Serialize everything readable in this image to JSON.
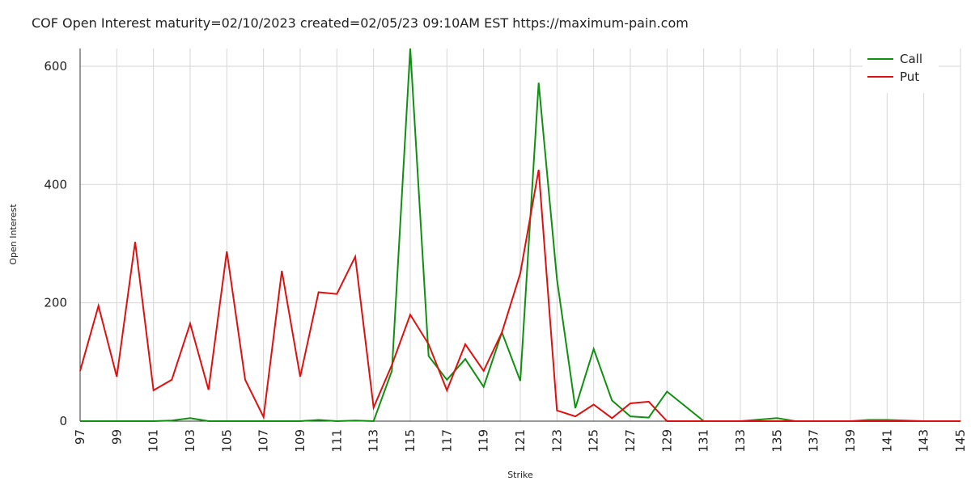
{
  "chart_data": {
    "type": "line",
    "title": "COF Open Interest maturity=02/10/2023 created=02/05/23 09:10AM EST https://maximum-pain.com",
    "xlabel": "Strike",
    "ylabel": "Open Interest",
    "x": [
      97,
      98,
      99,
      100,
      101,
      102,
      103,
      104,
      105,
      106,
      107,
      108,
      109,
      110,
      111,
      112,
      113,
      114,
      115,
      116,
      117,
      118,
      119,
      120,
      121,
      122,
      123,
      124,
      125,
      126,
      127,
      128,
      129,
      131,
      133,
      135,
      136,
      137,
      139,
      140,
      141,
      142,
      143,
      145
    ],
    "x_tick_labels": [
      "97",
      "99",
      "101",
      "103",
      "105",
      "107",
      "109",
      "111",
      "113",
      "115",
      "117",
      "119",
      "121",
      "123",
      "125",
      "127",
      "129",
      "131",
      "133",
      "135",
      "137",
      "139",
      "141",
      "143",
      "145"
    ],
    "xlim": [
      97,
      145
    ],
    "ylim": [
      0,
      630
    ],
    "y_ticks": [
      0,
      200,
      400,
      600
    ],
    "grid": true,
    "legend_position": "top-right",
    "series": [
      {
        "name": "Call",
        "color": "#109010",
        "values": [
          0,
          0,
          0,
          0,
          0,
          1,
          5,
          0,
          0,
          0,
          0,
          0,
          0,
          2,
          0,
          1,
          0,
          85,
          630,
          110,
          70,
          105,
          58,
          150,
          68,
          572,
          240,
          22,
          122,
          35,
          8,
          6,
          50,
          0,
          0,
          5,
          0,
          0,
          0,
          2,
          2,
          1,
          0,
          0
        ]
      },
      {
        "name": "Put",
        "color": "#e01010",
        "values": [
          85,
          195,
          75,
          303,
          52,
          70,
          165,
          53,
          287,
          70,
          7,
          254,
          75,
          218,
          215,
          278,
          23,
          95,
          180,
          130,
          52,
          130,
          85,
          150,
          250,
          425,
          18,
          8,
          28,
          5,
          30,
          33,
          0,
          0,
          0,
          0,
          0,
          0,
          0,
          0,
          0,
          0,
          0,
          0
        ]
      }
    ]
  }
}
